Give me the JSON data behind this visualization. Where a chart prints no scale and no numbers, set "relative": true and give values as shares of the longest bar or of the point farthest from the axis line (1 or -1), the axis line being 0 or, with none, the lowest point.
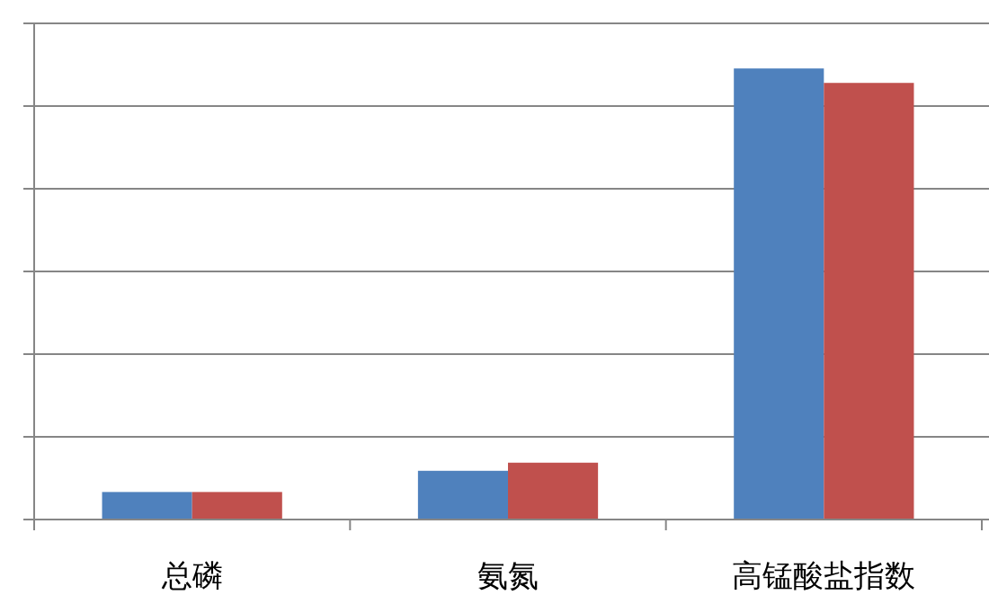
{
  "chart_data": {
    "type": "bar",
    "relative": true,
    "grid": "y",
    "categories": [
      "总磷",
      "氨氮",
      "高锰酸盐指数"
    ],
    "series": [
      {
        "color": "#4f81bd",
        "values": [
          0.061,
          0.108,
          1
        ]
      },
      {
        "color": "#c0504d",
        "values": [
          0.061,
          0.126,
          0.968
        ]
      }
    ]
  }
}
